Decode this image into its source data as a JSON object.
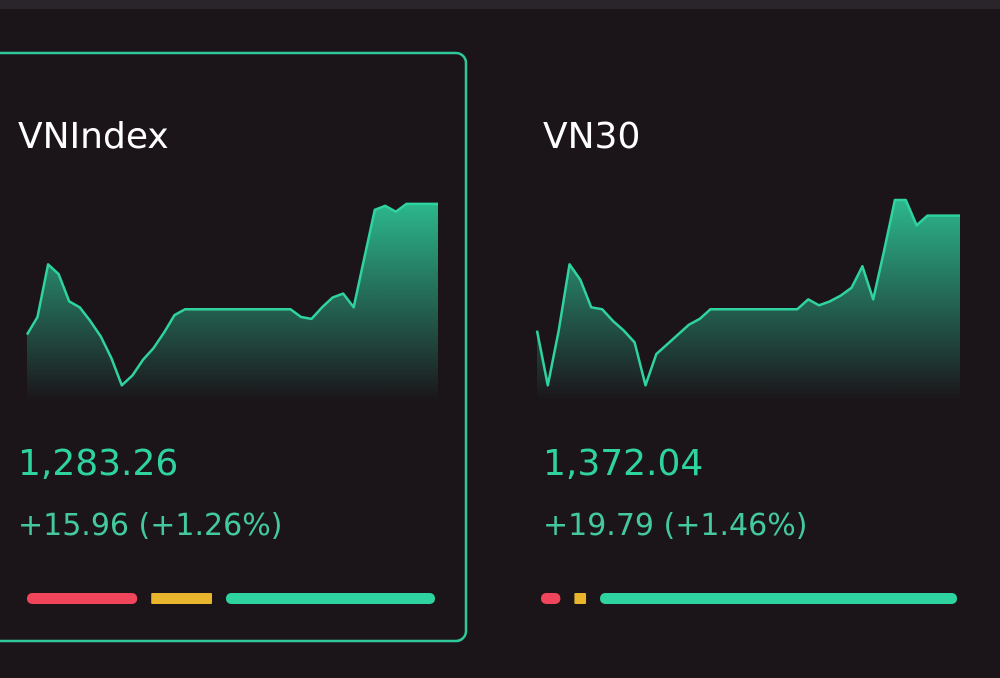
{
  "cards": [
    {
      "title": "VNIndex",
      "value": "1,283.26",
      "change": "+15.96 (+1.26%)",
      "bordered": true,
      "sparkline": {
        "type": "line",
        "color": "#2fd3a0",
        "ylim": [
          0,
          100
        ],
        "values": [
          31,
          40,
          67,
          62,
          48,
          45,
          38,
          30,
          19,
          5,
          10,
          18,
          24,
          32,
          41,
          44,
          44,
          44,
          44,
          44,
          44,
          44,
          44,
          44,
          44,
          44,
          40,
          39,
          45,
          50,
          52,
          45,
          70,
          95,
          97,
          94,
          98,
          98,
          98,
          98
        ]
      },
      "breadth": [
        {
          "color": "#f0455a",
          "value": 29
        },
        {
          "color": "#e8b52c",
          "value": 16
        },
        {
          "color": "#2fd3a0",
          "value": 55
        }
      ]
    },
    {
      "title": "VN30",
      "value": "1,372.04",
      "change": "+19.79 (+1.46%)",
      "bordered": false,
      "sparkline": {
        "type": "line",
        "color": "#2fd3a0",
        "ylim": [
          0,
          100
        ],
        "values": [
          33,
          5,
          33,
          67,
          59,
          45,
          44,
          38,
          33,
          27,
          5,
          21,
          26,
          31,
          36,
          39,
          44,
          44,
          44,
          44,
          44,
          44,
          44,
          44,
          44,
          49,
          46,
          48,
          51,
          55,
          66,
          49,
          74,
          100,
          100,
          87,
          92,
          92,
          92,
          92
        ]
      },
      "breadth": [
        {
          "color": "#f0455a",
          "value": 5
        },
        {
          "color": "#e8b52c",
          "value": 3
        },
        {
          "color": "#2fd3a0",
          "value": 92
        }
      ]
    }
  ]
}
